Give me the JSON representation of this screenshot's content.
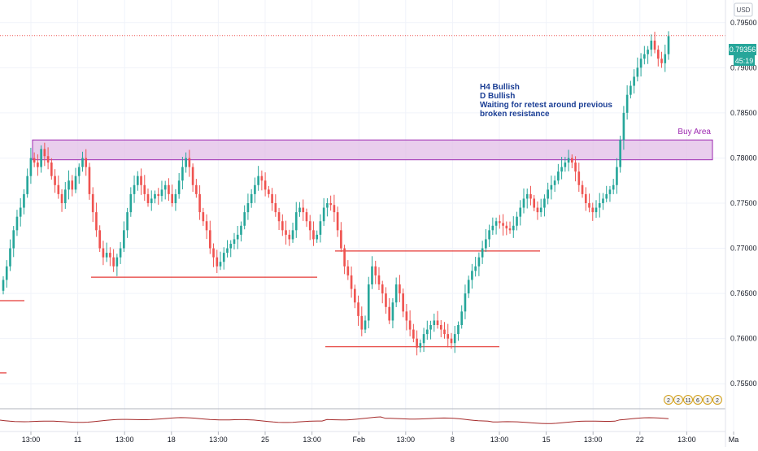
{
  "currency": "USD",
  "price_axis": {
    "ticks": [
      "0.79500",
      "0.79000",
      "0.78500",
      "0.78000",
      "0.77500",
      "0.77000",
      "0.76500",
      "0.76000",
      "0.75500"
    ],
    "last_price_label": "0.79356",
    "countdown_label": "45:19"
  },
  "time_axis": {
    "labels": [
      "13:00",
      "11",
      "13:00",
      "18",
      "13:00",
      "25",
      "13:00",
      "Feb",
      "13:00",
      "8",
      "13:00",
      "15",
      "13:00",
      "22",
      "13:00",
      "Ma"
    ]
  },
  "annotation": {
    "lines": [
      "H4 Bullish",
      "D Bullish",
      "Waiting for retest around previous",
      "broken resistance"
    ]
  },
  "zone": {
    "label": "Buy Area",
    "low": 0.7798,
    "high": 0.782
  },
  "colors": {
    "up": "#26a69a",
    "down": "#ef5350",
    "zone_fill": "#e1bee7",
    "zone_border": "#9c27b0",
    "note_text": "#1c3f95",
    "level_line": "#e53935",
    "indicator": "#a52a2a",
    "price_badge": "#26a69a"
  },
  "event_badges": [
    "2",
    "2",
    "11",
    "6",
    "1",
    "2"
  ],
  "chart_data": {
    "type": "candlestick",
    "ylim": [
      0.7525,
      0.7975
    ],
    "last_price": 0.79356,
    "grid": true,
    "legend": "none",
    "candles_close": [
      0.7665,
      0.768,
      0.77,
      0.772,
      0.7735,
      0.7745,
      0.776,
      0.778,
      0.78,
      0.7795,
      0.779,
      0.781,
      0.7802,
      0.7795,
      0.778,
      0.777,
      0.776,
      0.775,
      0.7765,
      0.7775,
      0.7765,
      0.778,
      0.779,
      0.78,
      0.779,
      0.776,
      0.774,
      0.772,
      0.77,
      0.769,
      0.7695,
      0.769,
      0.768,
      0.769,
      0.77,
      0.772,
      0.774,
      0.776,
      0.777,
      0.778,
      0.777,
      0.776,
      0.775,
      0.7755,
      0.776,
      0.7758,
      0.7765,
      0.777,
      0.776,
      0.775,
      0.776,
      0.7775,
      0.779,
      0.78,
      0.779,
      0.777,
      0.776,
      0.774,
      0.773,
      0.772,
      0.77,
      0.769,
      0.768,
      0.7685,
      0.7695,
      0.77,
      0.7705,
      0.771,
      0.7715,
      0.7725,
      0.774,
      0.775,
      0.776,
      0.777,
      0.778,
      0.7775,
      0.7765,
      0.776,
      0.775,
      0.774,
      0.773,
      0.772,
      0.7715,
      0.771,
      0.772,
      0.774,
      0.7745,
      0.774,
      0.773,
      0.772,
      0.771,
      0.7715,
      0.773,
      0.7745,
      0.775,
      0.7748,
      0.774,
      0.772,
      0.77,
      0.768,
      0.767,
      0.7655,
      0.764,
      0.7625,
      0.761,
      0.762,
      0.766,
      0.768,
      0.767,
      0.766,
      0.765,
      0.7635,
      0.762,
      0.764,
      0.766,
      0.765,
      0.763,
      0.762,
      0.761,
      0.76,
      0.759,
      0.7595,
      0.7605,
      0.761,
      0.7615,
      0.762,
      0.7615,
      0.761,
      0.7605,
      0.76,
      0.7595,
      0.7605,
      0.7615,
      0.763,
      0.765,
      0.7665,
      0.7675,
      0.768,
      0.769,
      0.77,
      0.771,
      0.772,
      0.7725,
      0.773,
      0.7728,
      0.7725,
      0.7722,
      0.772,
      0.7725,
      0.7735,
      0.7745,
      0.7755,
      0.776,
      0.7755,
      0.7745,
      0.774,
      0.7745,
      0.7755,
      0.7765,
      0.777,
      0.7775,
      0.7785,
      0.779,
      0.7795,
      0.78,
      0.7795,
      0.7785,
      0.777,
      0.776,
      0.775,
      0.7745,
      0.774,
      0.7745,
      0.775,
      0.7755,
      0.776,
      0.7765,
      0.777,
      0.779,
      0.782,
      0.785,
      0.787,
      0.788,
      0.789,
      0.79,
      0.791,
      0.7915,
      0.792,
      0.793,
      0.792,
      0.791,
      0.7905,
      0.7915,
      0.7935
    ]
  }
}
